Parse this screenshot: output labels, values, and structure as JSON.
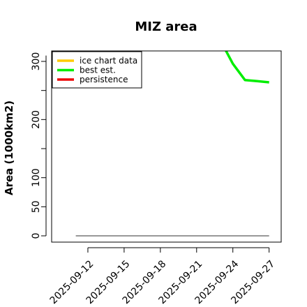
{
  "chart_data": {
    "type": "line",
    "title": "MIZ area",
    "xlabel": "",
    "ylabel": "Area (1000km2)",
    "ylim": [
      0,
      310
    ],
    "ytick_values": [
      0,
      50,
      100,
      200,
      300
    ],
    "ytick_labels": [
      "0",
      "50",
      "100",
      "200",
      "300"
    ],
    "yminor_ticks": [
      150,
      250
    ],
    "xlim": [
      "2025-09-09",
      "2025-09-28"
    ],
    "x_tick_labels": [
      "2025-09-12",
      "2025-09-15",
      "2025-09-18",
      "2025-09-21",
      "2025-09-24",
      "2025-09-27"
    ],
    "reference_line": {
      "y": 0,
      "x_start": "2025-09-11",
      "x_end": "2025-09-27",
      "color": "#777777"
    },
    "legend_position": "top-left",
    "series": [
      {
        "name": "ice chart data",
        "color": "#ffcc00",
        "x": [],
        "y": []
      },
      {
        "name": "best est.",
        "color": "#00ee00",
        "x": [
          "2025-09-23",
          "2025-09-24",
          "2025-09-25",
          "2025-09-26",
          "2025-09-27"
        ],
        "y": [
          335,
          296,
          268,
          266,
          264
        ]
      },
      {
        "name": "persistence",
        "color": "#ee0000",
        "x": [],
        "y": []
      }
    ]
  }
}
